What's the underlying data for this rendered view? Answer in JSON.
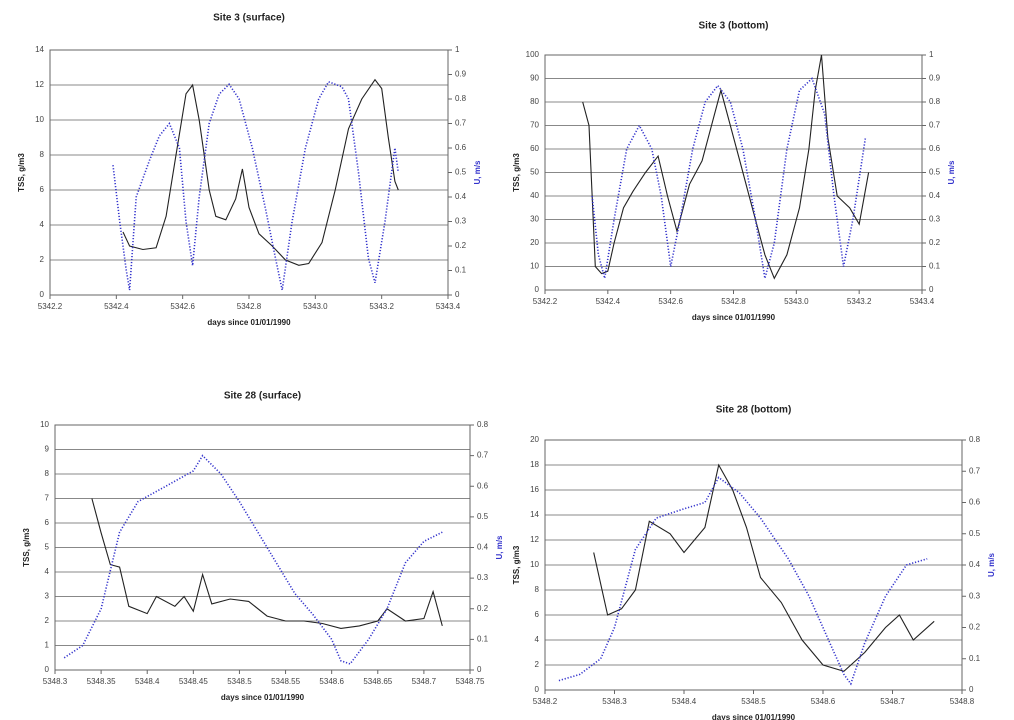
{
  "chart_data": [
    {
      "type": "line",
      "title": "Site 3 (surface)",
      "x_label": "days since 01/01/1990",
      "y_label": "TSS, g/m3",
      "y2_label": "U, m/s",
      "y2_label_color": "#3333cc",
      "grid": true,
      "xlim": [
        5342.2,
        5343.4
      ],
      "xticks": [
        5342.2,
        5342.4,
        5342.6,
        5342.8,
        {
          "value": 5343,
          "label": "5343.0"
        },
        5343.2,
        5343.4
      ],
      "ylim": [
        0,
        14
      ],
      "yticks": [
        0,
        2,
        4,
        6,
        8,
        10,
        12,
        14
      ],
      "y2lim": [
        0,
        1
      ],
      "y2ticks": [
        0,
        0.1,
        0.2,
        0.3,
        0.4,
        0.5,
        0.6,
        0.7,
        0.8,
        0.9,
        1
      ],
      "series": [
        {
          "color": "#222222",
          "linestyle": "solid",
          "x": [
            5342.42,
            5342.44,
            5342.48,
            5342.52,
            5342.55,
            5342.58,
            5342.61,
            5342.63,
            5342.65,
            5342.68,
            5342.7,
            5342.73,
            5342.76,
            5342.78,
            5342.8,
            5342.83,
            5342.87,
            5342.91,
            5342.95,
            5342.98,
            5343.02,
            5343.06,
            5343.1,
            5343.14,
            5343.18,
            5343.2,
            5343.22,
            5343.24,
            5343.25
          ],
          "values": [
            3.6,
            2.8,
            2.6,
            2.7,
            4.5,
            8,
            11.5,
            12,
            10,
            6,
            4.5,
            4.3,
            5.5,
            7.2,
            5,
            3.5,
            2.8,
            2,
            1.7,
            1.8,
            3,
            6,
            9.5,
            11.2,
            12.3,
            11.8,
            9,
            6.5,
            6
          ]
        },
        {
          "color": "#3333cc",
          "linestyle": "dotted",
          "axis": "y2",
          "x": [
            5342.39,
            5342.41,
            5342.43,
            5342.44,
            5342.46,
            5342.5,
            5342.53,
            5342.56,
            5342.59,
            5342.61,
            5342.63,
            5342.65,
            5342.68,
            5342.71,
            5342.74,
            5342.77,
            5342.81,
            5342.85,
            5342.88,
            5342.9,
            5342.93,
            5342.97,
            5343.01,
            5343.04,
            5343.08,
            5343.1,
            5343.13,
            5343.16,
            5343.18,
            5343.21,
            5343.24,
            5343.25
          ],
          "values": [
            0.53,
            0.3,
            0.1,
            0.02,
            0.4,
            0.55,
            0.65,
            0.7,
            0.6,
            0.3,
            0.12,
            0.4,
            0.7,
            0.82,
            0.86,
            0.8,
            0.6,
            0.35,
            0.15,
            0.02,
            0.3,
            0.6,
            0.8,
            0.87,
            0.85,
            0.8,
            0.5,
            0.15,
            0.05,
            0.3,
            0.6,
            0.5
          ]
        }
      ]
    },
    {
      "type": "line",
      "title": "Site 3 (bottom)",
      "x_label": "days since 01/01/1990",
      "y_label": "TSS, g/m3",
      "y2_label": "U, m/s",
      "y2_label_color": "#3333cc",
      "grid": true,
      "xlim": [
        5342.2,
        5343.4
      ],
      "xticks": [
        5342.2,
        5342.4,
        5342.6,
        5342.8,
        {
          "value": 5343,
          "label": "5343.0"
        },
        5343.2,
        5343.4
      ],
      "ylim": [
        0,
        100
      ],
      "yticks": [
        0,
        10,
        20,
        30,
        40,
        50,
        60,
        70,
        80,
        90,
        100
      ],
      "y2lim": [
        0,
        1
      ],
      "y2ticks": [
        0,
        0.1,
        0.2,
        0.3,
        0.4,
        0.5,
        0.6,
        0.7,
        0.8,
        0.9,
        1
      ],
      "series": [
        {
          "color": "#222222",
          "linestyle": "solid",
          "x": [
            5342.32,
            5342.34,
            5342.36,
            5342.38,
            5342.4,
            5342.42,
            5342.45,
            5342.48,
            5342.52,
            5342.56,
            5342.59,
            5342.62,
            5342.66,
            5342.7,
            5342.73,
            5342.76,
            5342.78,
            5342.82,
            5342.86,
            5342.9,
            5342.93,
            5342.97,
            5343.01,
            5343.04,
            5343.06,
            5343.08,
            5343.1,
            5343.13,
            5343.17,
            5343.2,
            5343.23
          ],
          "values": [
            80,
            70,
            10,
            7,
            8,
            20,
            35,
            42,
            50,
            57,
            40,
            25,
            45,
            55,
            70,
            85,
            75,
            55,
            35,
            15,
            5,
            15,
            35,
            60,
            85,
            100,
            65,
            40,
            35,
            28,
            50
          ]
        },
        {
          "color": "#3333cc",
          "linestyle": "dotted",
          "axis": "y2",
          "x": [
            5342.35,
            5342.37,
            5342.39,
            5342.42,
            5342.46,
            5342.5,
            5342.54,
            5342.57,
            5342.6,
            5342.63,
            5342.67,
            5342.71,
            5342.75,
            5342.79,
            5342.83,
            5342.87,
            5342.9,
            5342.93,
            5342.97,
            5343.01,
            5343.05,
            5343.09,
            5343.12,
            5343.15,
            5343.18,
            5343.22
          ],
          "values": [
            0.4,
            0.15,
            0.05,
            0.3,
            0.6,
            0.7,
            0.6,
            0.4,
            0.1,
            0.3,
            0.6,
            0.8,
            0.87,
            0.8,
            0.6,
            0.3,
            0.05,
            0.2,
            0.6,
            0.85,
            0.9,
            0.75,
            0.4,
            0.1,
            0.3,
            0.65
          ]
        }
      ]
    },
    {
      "type": "line",
      "title": "Site 28 (surface)",
      "x_label": "days since 01/01/1990",
      "y_label": "TSS, g/m3",
      "y2_label": "U, m/s",
      "y2_label_color": "#3333cc",
      "grid": true,
      "xlim": [
        5348.3,
        5348.75
      ],
      "xticks": [
        5348.3,
        5348.35,
        5348.4,
        5348.45,
        5348.5,
        5348.55,
        5348.6,
        5348.65,
        5348.7,
        5348.75
      ],
      "ylim": [
        0,
        10
      ],
      "yticks": [
        0,
        1,
        2,
        3,
        4,
        5,
        6,
        7,
        8,
        9,
        10
      ],
      "y2lim": [
        0,
        0.8
      ],
      "y2ticks": [
        0,
        0.1,
        0.2,
        0.3,
        0.4,
        0.5,
        0.6,
        0.7,
        0.8
      ],
      "series": [
        {
          "color": "#222222",
          "linestyle": "solid",
          "x": [
            5348.34,
            5348.35,
            5348.36,
            5348.37,
            5348.38,
            5348.4,
            5348.41,
            5348.43,
            5348.44,
            5348.45,
            5348.46,
            5348.47,
            5348.49,
            5348.51,
            5348.53,
            5348.55,
            5348.57,
            5348.59,
            5348.61,
            5348.63,
            5348.65,
            5348.66,
            5348.68,
            5348.7,
            5348.71,
            5348.72
          ],
          "values": [
            7,
            5.6,
            4.3,
            4.2,
            2.6,
            2.3,
            3,
            2.6,
            3,
            2.4,
            3.9,
            2.7,
            2.9,
            2.8,
            2.2,
            2,
            2,
            1.9,
            1.7,
            1.8,
            2,
            2.5,
            2,
            2.1,
            3.2,
            1.8
          ]
        },
        {
          "color": "#3333cc",
          "linestyle": "dotted",
          "axis": "y2",
          "x": [
            5348.31,
            5348.33,
            5348.35,
            5348.37,
            5348.39,
            5348.42,
            5348.45,
            5348.46,
            5348.48,
            5348.5,
            5348.53,
            5348.56,
            5348.58,
            5348.6,
            5348.61,
            5348.62,
            5348.64,
            5348.66,
            5348.68,
            5348.7,
            5348.72
          ],
          "values": [
            0.04,
            0.08,
            0.2,
            0.45,
            0.55,
            0.6,
            0.65,
            0.7,
            0.64,
            0.55,
            0.4,
            0.25,
            0.18,
            0.1,
            0.03,
            0.02,
            0.1,
            0.2,
            0.35,
            0.42,
            0.45
          ]
        }
      ]
    },
    {
      "type": "line",
      "title": "Site 28 (bottom)",
      "x_label": "days since 01/01/1990",
      "y_label": "TSS, g/m3",
      "y2_label": "U, m/s",
      "y2_label_color": "#3333cc",
      "grid": true,
      "xlim": [
        5348.2,
        5348.8
      ],
      "xticks": [
        5348.2,
        5348.3,
        5348.4,
        5348.5,
        5348.6,
        5348.7,
        5348.8
      ],
      "ylim": [
        0,
        20
      ],
      "yticks": [
        0,
        2,
        4,
        6,
        8,
        10,
        12,
        14,
        16,
        18,
        20
      ],
      "y2lim": [
        0,
        0.8
      ],
      "y2ticks": [
        0,
        0.1,
        0.2,
        0.3,
        0.4,
        0.5,
        0.6,
        0.7,
        0.8
      ],
      "series": [
        {
          "color": "#222222",
          "linestyle": "solid",
          "x": [
            5348.27,
            5348.29,
            5348.31,
            5348.33,
            5348.35,
            5348.38,
            5348.4,
            5348.43,
            5348.45,
            5348.47,
            5348.49,
            5348.51,
            5348.54,
            5348.57,
            5348.6,
            5348.63,
            5348.66,
            5348.69,
            5348.71,
            5348.73,
            5348.76
          ],
          "values": [
            11,
            6,
            6.5,
            8,
            13.5,
            12.5,
            11,
            13,
            18,
            16,
            13,
            9,
            7,
            4,
            2,
            1.5,
            3,
            5,
            6,
            4,
            5.5
          ]
        },
        {
          "color": "#3333cc",
          "linestyle": "dotted",
          "axis": "y2",
          "x": [
            5348.22,
            5348.25,
            5348.28,
            5348.3,
            5348.33,
            5348.36,
            5348.4,
            5348.43,
            5348.45,
            5348.48,
            5348.51,
            5348.55,
            5348.58,
            5348.61,
            5348.63,
            5348.64,
            5348.66,
            5348.69,
            5348.72,
            5348.75
          ],
          "values": [
            0.03,
            0.05,
            0.1,
            0.2,
            0.45,
            0.55,
            0.58,
            0.6,
            0.68,
            0.63,
            0.55,
            0.42,
            0.3,
            0.15,
            0.05,
            0.02,
            0.15,
            0.3,
            0.4,
            0.42
          ]
        }
      ]
    }
  ]
}
